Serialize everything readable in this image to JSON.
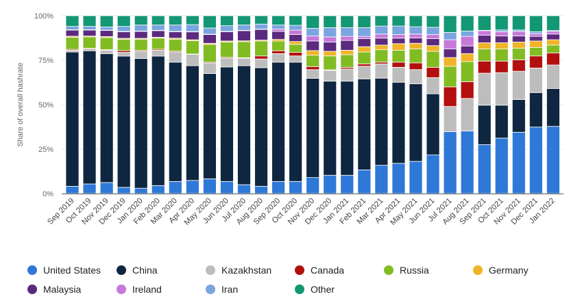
{
  "chart_data": {
    "type": "bar",
    "stacked": true,
    "title": "",
    "xlabel": "",
    "ylabel": "Share of overall hashrate",
    "ylim": [
      0,
      100
    ],
    "yticks": [
      "0%",
      "25%",
      "50%",
      "75%",
      "100%"
    ],
    "grid": true,
    "legend_position": "bottom",
    "categories": [
      "Sep 2019",
      "Oct 2019",
      "Nov 2019",
      "Dec 2019",
      "Jan 2020",
      "Feb 2020",
      "Mar 2020",
      "Apr 2020",
      "May 2020",
      "Jun 2020",
      "Jul 2020",
      "Aug 2020",
      "Sep 2020",
      "Oct 2020",
      "Nov 2020",
      "Dec 2020",
      "Jan 2021",
      "Feb 2021",
      "Mar 2021",
      "Apr 2021",
      "May 2021",
      "Jun 2021",
      "Jul 2021",
      "Aug 2021",
      "Sep 2021",
      "Oct 2021",
      "Nov 2021",
      "Dec 2021",
      "Jan 2022"
    ],
    "series": [
      {
        "name": "United States",
        "color": "#2e78d8",
        "values": [
          4.1,
          5.4,
          6.2,
          3.5,
          3.0,
          4.5,
          6.8,
          7.4,
          8.3,
          6.8,
          5.0,
          4.1,
          6.8,
          6.8,
          9.0,
          10.3,
          10.3,
          13.3,
          15.9,
          17.0,
          18.1,
          21.7,
          34.8,
          35.2,
          27.5,
          31.2,
          34.5,
          37.4,
          37.8
        ]
      },
      {
        "name": "China",
        "color": "#0f2640",
        "values": [
          75.5,
          74.9,
          72.5,
          73.8,
          73.0,
          72.8,
          67.1,
          64.5,
          59.2,
          64.4,
          66.9,
          66.7,
          67.1,
          67.1,
          55.8,
          52.9,
          52.9,
          51.2,
          49.0,
          45.6,
          43.6,
          34.4,
          0,
          0,
          22.2,
          18.5,
          18.4,
          19.4,
          21.3
        ]
      },
      {
        "name": "Kazakhstan",
        "color": "#bdbdbd",
        "values": [
          1.0,
          1.0,
          1.9,
          2.1,
          4.0,
          3.3,
          5.7,
          6.4,
          5.9,
          4.9,
          4.2,
          4.9,
          4.8,
          3.5,
          4.9,
          6.1,
          6.9,
          7.1,
          8.0,
          8.4,
          8.0,
          9.1,
          14.2,
          18.3,
          18.0,
          18.3,
          15.9,
          13.8,
          13.2
        ]
      },
      {
        "name": "Canada",
        "color": "#b30f0f",
        "values": [
          0.5,
          0.4,
          0.4,
          1.0,
          0.5,
          0.6,
          0.5,
          0.2,
          0.5,
          0.5,
          0.3,
          1.7,
          1.6,
          2.0,
          1.7,
          0.3,
          0.9,
          1.3,
          1.0,
          2.9,
          3.8,
          5.8,
          11.0,
          9.4,
          6.8,
          6.5,
          6.4,
          6.8,
          6.8
        ]
      },
      {
        "name": "Russia",
        "color": "#82bc23",
        "values": [
          6.8,
          6.4,
          6.7,
          6.4,
          6.3,
          6.2,
          6.7,
          7.5,
          10.0,
          8.6,
          9.0,
          8.4,
          5.5,
          4.5,
          6.4,
          7.8,
          7.1,
          6.7,
          7.0,
          6.7,
          7.8,
          9.0,
          11.6,
          11.3,
          6.8,
          6.8,
          6.5,
          4.8,
          4.4
        ]
      },
      {
        "name": "Germany",
        "color": "#f0b429",
        "values": [
          0.6,
          0.5,
          0.6,
          0.5,
          0.5,
          0.5,
          0.6,
          0.5,
          0.6,
          0.6,
          0.5,
          0.5,
          0.9,
          1.6,
          2.6,
          2.6,
          2.5,
          3.0,
          2.6,
          3.7,
          3.2,
          3.2,
          4.9,
          4.5,
          3.5,
          3.5,
          3.5,
          3.6,
          3.0
        ]
      },
      {
        "name": "Malaysia",
        "color": "#5b2a7e",
        "values": [
          3.4,
          3.3,
          3.4,
          3.7,
          3.9,
          3.7,
          3.6,
          4.4,
          4.9,
          5.2,
          5.7,
          6.0,
          4.5,
          3.9,
          5.4,
          5.2,
          5.5,
          4.5,
          3.9,
          3.1,
          3.0,
          3.9,
          4.8,
          4.3,
          4.2,
          3.8,
          3.4,
          2.6,
          3.2
        ]
      },
      {
        "name": "Ireland",
        "color": "#c779d9",
        "values": [
          0.2,
          0.2,
          0.2,
          0.2,
          0.2,
          0.2,
          0.2,
          0.2,
          0.2,
          0.2,
          0.2,
          0.2,
          1.3,
          2.5,
          2.8,
          2.9,
          2.3,
          1.3,
          2.3,
          2.0,
          2.2,
          2.3,
          5.2,
          5.4,
          2.6,
          2.4,
          2.6,
          1.5,
          1.5
        ]
      },
      {
        "name": "Iran",
        "color": "#7aa5e0",
        "values": [
          1.9,
          1.9,
          1.8,
          2.8,
          3.4,
          3.0,
          3.6,
          3.9,
          3.5,
          3.2,
          3.0,
          2.8,
          2.3,
          2.7,
          4.3,
          5.2,
          4.9,
          4.9,
          4.5,
          4.8,
          4.1,
          4.1,
          4.1,
          3.0,
          0.2,
          1.0,
          0.8,
          1.1,
          0.5
        ]
      },
      {
        "name": "Other",
        "color": "#139873",
        "values": [
          6.0,
          6.0,
          6.3,
          6.0,
          5.2,
          5.2,
          5.2,
          5.0,
          6.9,
          5.6,
          5.2,
          4.7,
          5.2,
          5.4,
          7.1,
          6.7,
          6.7,
          6.7,
          5.8,
          5.8,
          6.2,
          6.5,
          9.4,
          8.6,
          8.2,
          8.0,
          8.0,
          9.0,
          8.3
        ]
      }
    ]
  }
}
